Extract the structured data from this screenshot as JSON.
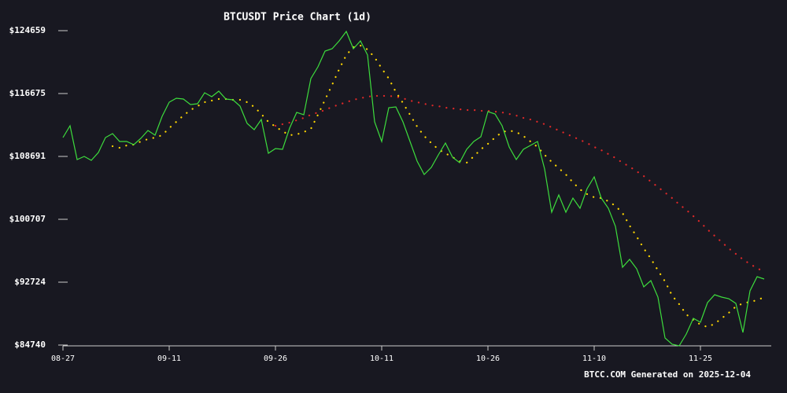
{
  "chart_data": {
    "type": "line",
    "title": "BTCUSDT Price Chart (1d)",
    "footer": "BTCC.COM Generated on 2025-12-04",
    "categories": [
      "08-27",
      null,
      null,
      null,
      null,
      null,
      null,
      null,
      null,
      null,
      null,
      null,
      null,
      null,
      null,
      "09-11",
      null,
      null,
      null,
      null,
      null,
      null,
      null,
      null,
      null,
      null,
      null,
      null,
      null,
      null,
      "09-26",
      null,
      null,
      null,
      null,
      null,
      null,
      null,
      null,
      null,
      null,
      null,
      null,
      null,
      null,
      "10-11",
      null,
      null,
      null,
      null,
      null,
      null,
      null,
      null,
      null,
      null,
      null,
      null,
      null,
      null,
      "10-26",
      null,
      null,
      null,
      null,
      null,
      null,
      null,
      null,
      null,
      null,
      null,
      null,
      null,
      null,
      "11-10",
      null,
      null,
      null,
      null,
      null,
      null,
      null,
      null,
      null,
      null,
      null,
      null,
      null,
      null,
      "11-25",
      null,
      null,
      null,
      null,
      null,
      null,
      null,
      null,
      null
    ],
    "series": [
      {
        "color": "#3ddc3d",
        "style": "solid",
        "values": [
          111087,
          112584,
          108293,
          108692,
          108193,
          109191,
          111087,
          111586,
          110588,
          110588,
          110189,
          110987,
          111985,
          111387,
          113782,
          115578,
          116077,
          115977,
          115279,
          115379,
          116776,
          116277,
          116975,
          115977,
          115878,
          115079,
          112884,
          112085,
          113383,
          109091,
          109690,
          109590,
          112285,
          114281,
          113981,
          118572,
          120069,
          122065,
          122365,
          123363,
          124560,
          122365,
          123363,
          121566,
          113083,
          110588,
          114880,
          114979,
          113083,
          110588,
          108093,
          106397,
          107295,
          108892,
          110389,
          108592,
          107894,
          109590,
          110588,
          111187,
          114381,
          114081,
          112584,
          109890,
          108293,
          109590,
          110089,
          110588,
          107095,
          101606,
          103802,
          101606,
          103403,
          102105,
          104600,
          106097,
          103403,
          102105,
          99810,
          94620,
          95618,
          94421,
          92125,
          92924,
          90828,
          85638,
          84840,
          84640,
          86137,
          88133,
          87634,
          90129,
          91127,
          90828,
          90628,
          90029,
          86337,
          91626,
          93423,
          93123
        ]
      },
      {
        "color": "#ffd700",
        "style": "dotted",
        "values": [
          null,
          null,
          null,
          null,
          null,
          null,
          null,
          109989,
          109790,
          110089,
          110189,
          110588,
          110888,
          111087,
          111387,
          112285,
          113083,
          113882,
          114580,
          115079,
          115578,
          115778,
          115977,
          115977,
          115878,
          115878,
          115578,
          114979,
          114081,
          113083,
          112484,
          111886,
          111387,
          111486,
          111786,
          112185,
          113981,
          115878,
          117774,
          119770,
          121566,
          122564,
          122764,
          122265,
          121267,
          119870,
          118572,
          116876,
          115478,
          113981,
          112484,
          111287,
          110389,
          109590,
          109091,
          108592,
          108093,
          107894,
          108692,
          109590,
          110289,
          111087,
          111786,
          111985,
          111786,
          111287,
          110588,
          109890,
          108892,
          107993,
          107195,
          106397,
          105399,
          104500,
          103902,
          103502,
          103403,
          103003,
          102405,
          101506,
          99910,
          98512,
          97015,
          95718,
          94221,
          92824,
          91027,
          89930,
          88632,
          87934,
          87335,
          87035,
          87435,
          88133,
          88832,
          89630,
          90029,
          90229,
          90429,
          90828
        ]
      },
      {
        "color": "#e02828",
        "style": "dotted",
        "values": [
          null,
          null,
          null,
          null,
          null,
          null,
          null,
          null,
          null,
          null,
          null,
          null,
          null,
          null,
          null,
          null,
          null,
          null,
          null,
          null,
          null,
          null,
          null,
          null,
          null,
          null,
          null,
          null,
          null,
          null,
          112584,
          112784,
          112983,
          113283,
          113582,
          113981,
          114281,
          114580,
          114979,
          115279,
          115578,
          115878,
          116077,
          116277,
          116377,
          116377,
          116377,
          116277,
          116077,
          115778,
          115578,
          115379,
          115179,
          115079,
          114880,
          114780,
          114680,
          114580,
          114580,
          114480,
          114480,
          114381,
          114281,
          114081,
          113882,
          113582,
          113383,
          113083,
          112784,
          112385,
          111985,
          111586,
          111187,
          110788,
          110389,
          109890,
          109490,
          108991,
          108492,
          107894,
          107395,
          106796,
          106197,
          105498,
          104800,
          104101,
          103403,
          102604,
          101906,
          101107,
          100309,
          99411,
          98612,
          97814,
          97015,
          96317,
          95618,
          95019,
          94520,
          94021
        ]
      }
    ],
    "ylim": [
      84740,
      124659
    ],
    "yticks": [
      {
        "value": 84740,
        "label": "$84740"
      },
      {
        "value": 92724,
        "label": "$92724"
      },
      {
        "value": 100707,
        "label": "$100707"
      },
      {
        "value": 108691,
        "label": "$108691"
      },
      {
        "value": 116675,
        "label": "$116675"
      },
      {
        "value": 124659,
        "label": "$124659"
      }
    ]
  }
}
